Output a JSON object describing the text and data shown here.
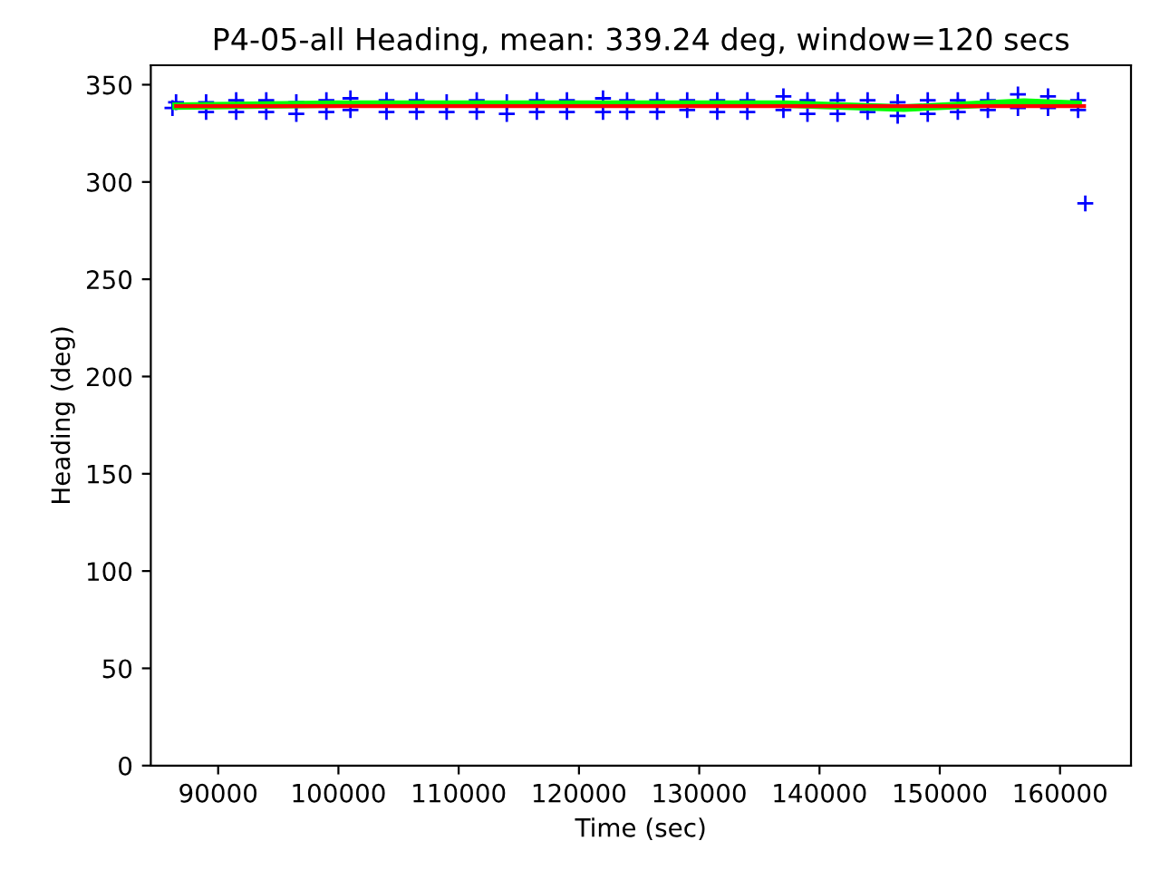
{
  "chart_data": {
    "type": "scatter",
    "title": "P4-05-all Heading, mean: 339.24 deg, window=120 secs",
    "xlabel": "Time (sec)",
    "ylabel": "Heading (deg)",
    "xlim": [
      84400,
      165900
    ],
    "ylim": [
      0,
      360
    ],
    "xticks": [
      90000,
      100000,
      110000,
      120000,
      130000,
      140000,
      150000,
      160000
    ],
    "yticks": [
      0,
      50,
      100,
      150,
      200,
      250,
      300,
      350
    ],
    "grid": false,
    "legend": false,
    "series": [
      {
        "marker": "cross",
        "color": "#0000ff",
        "x": [
          86200,
          86500,
          89000,
          89000,
          91500,
          91500,
          94000,
          94000,
          96500,
          96500,
          99000,
          99000,
          101000,
          101000,
          104000,
          104000,
          106500,
          106500,
          109000,
          109000,
          111500,
          111500,
          114000,
          114000,
          116500,
          116500,
          119000,
          119000,
          122000,
          122000,
          124000,
          124000,
          126500,
          126500,
          129000,
          129000,
          131500,
          131500,
          134000,
          134000,
          137000,
          137000,
          139000,
          139000,
          141500,
          141500,
          144000,
          144000,
          146500,
          146500,
          149000,
          149000,
          151500,
          151500,
          154000,
          154000,
          156500,
          156500,
          159000,
          159000,
          161500,
          161500,
          162100
        ],
        "values": [
          338,
          341,
          341,
          336,
          342,
          336,
          342,
          336,
          341,
          335,
          342,
          336,
          343,
          337,
          342,
          336,
          342,
          336,
          341,
          336,
          342,
          336,
          341,
          335,
          342,
          336,
          342,
          336,
          343,
          336,
          342,
          336,
          342,
          336,
          342,
          337,
          342,
          336,
          342,
          336,
          344,
          337,
          342,
          335,
          342,
          335,
          342,
          336,
          341,
          334,
          342,
          335,
          342,
          336,
          342,
          337,
          345,
          338,
          344,
          338,
          342,
          337,
          289
        ]
      },
      {
        "type": "line",
        "color": "#00ff00",
        "x": [
          86500,
          100000,
          122000,
          137000,
          147000,
          157000,
          161500
        ],
        "values": [
          339,
          340,
          340,
          340,
          338,
          341,
          340
        ]
      },
      {
        "type": "line",
        "color": "#ff0000",
        "x": [
          86500,
          162000
        ],
        "values": [
          339,
          339
        ]
      }
    ]
  }
}
